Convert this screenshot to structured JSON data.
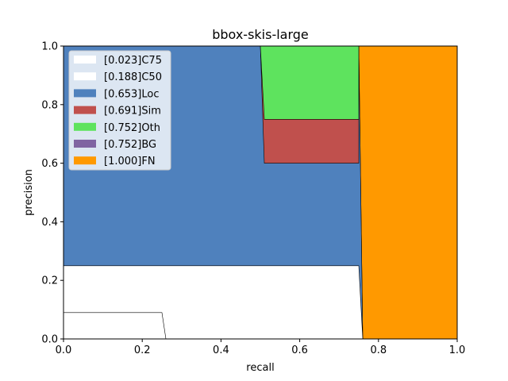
{
  "chart_data": {
    "type": "area",
    "title": "bbox-skis-large",
    "xlabel": "recall",
    "ylabel": "precision",
    "xlim": [
      0,
      1
    ],
    "ylim": [
      0,
      1
    ],
    "xticks": [
      "0.0",
      "0.2",
      "0.4",
      "0.6",
      "0.8",
      "1.0"
    ],
    "yticks": [
      "0.0",
      "0.2",
      "0.4",
      "0.6",
      "0.8",
      "1.0"
    ],
    "legend_position": "top-left",
    "series": [
      {
        "name": "[0.023]C75",
        "color": "#ffffff",
        "points": [
          [
            0,
            0.09
          ],
          [
            0.25,
            0.09
          ],
          [
            0.26,
            0
          ],
          [
            0,
            0
          ]
        ]
      },
      {
        "name": "[0.188]C50",
        "color": "#ffffff",
        "points": [
          [
            0,
            0.25
          ],
          [
            0.75,
            0.25
          ],
          [
            0.76,
            0
          ],
          [
            0,
            0
          ]
        ]
      },
      {
        "name": "[0.653]Loc",
        "color": "#4f81bd",
        "points": [
          [
            0,
            1
          ],
          [
            0.5,
            1
          ],
          [
            0.75,
            1
          ],
          [
            0.76,
            0
          ],
          [
            0,
            0
          ]
        ]
      },
      {
        "name": "[0.691]Sim",
        "color": "#c0504d",
        "points": [
          [
            0.5,
            1
          ],
          [
            0.75,
            1
          ],
          [
            0.75,
            0.6
          ],
          [
            0.51,
            0.6
          ]
        ]
      },
      {
        "name": "[0.752]Oth",
        "color": "#5ee35e",
        "points": [
          [
            0.5,
            1
          ],
          [
            0.75,
            1
          ],
          [
            0.75,
            0.75
          ],
          [
            0.51,
            0.75
          ]
        ]
      },
      {
        "name": "[0.752]BG",
        "color": "#8064a2",
        "points": [
          [
            0.75,
            1
          ],
          [
            0.75,
            1
          ],
          [
            0.75,
            1
          ]
        ]
      },
      {
        "name": "[1.000]FN",
        "color": "#ff9900",
        "points": [
          [
            0.75,
            1
          ],
          [
            1,
            1
          ],
          [
            1,
            0
          ],
          [
            0.76,
            0
          ]
        ]
      }
    ]
  }
}
